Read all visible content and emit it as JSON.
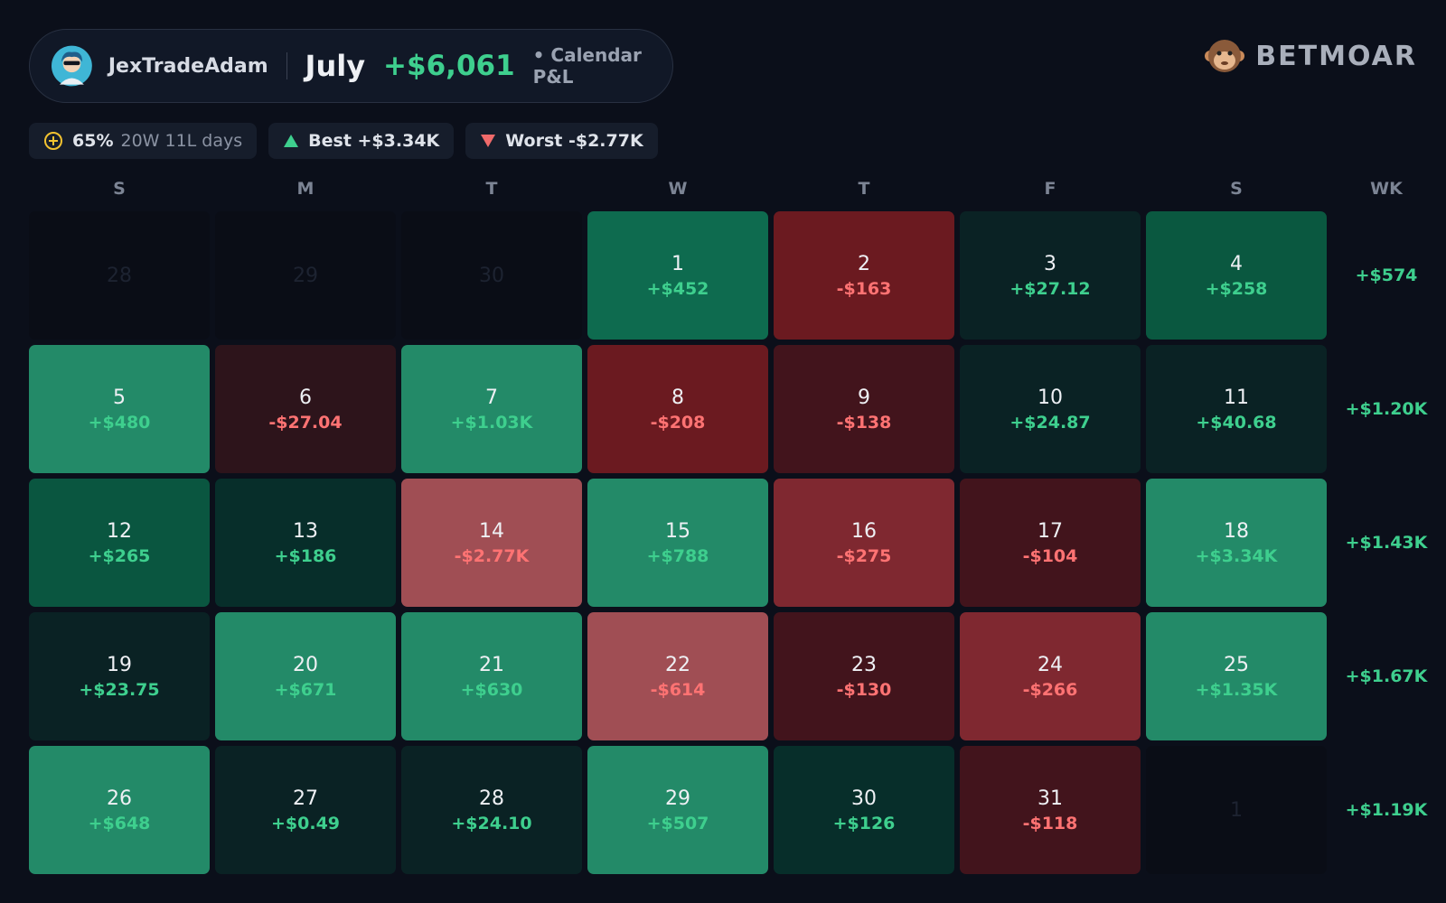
{
  "header": {
    "username": "JexTradeAdam",
    "month": "July",
    "total": "+$6,061",
    "subtitle": "• Calendar P&L",
    "brand": "BETMOAR"
  },
  "stats": {
    "win_rate": "65%",
    "record": "20W 11L days",
    "best": "Best +$3.34K",
    "worst": "Worst -$2.77K"
  },
  "columns": [
    "S",
    "M",
    "T",
    "W",
    "T",
    "F",
    "S",
    "WK"
  ],
  "weeks": [
    {
      "days": [
        {
          "day": "28",
          "outside": true
        },
        {
          "day": "29",
          "outside": true
        },
        {
          "day": "30",
          "outside": true
        },
        {
          "day": "1",
          "pnl": "+$452",
          "color": "#0e6b4f"
        },
        {
          "day": "2",
          "pnl": "-$163",
          "color": "#6b1a20"
        },
        {
          "day": "3",
          "pnl": "+$27.12",
          "color": "#0a2224"
        },
        {
          "day": "4",
          "pnl": "+$258",
          "color": "#0a5840"
        }
      ],
      "total": "+$574"
    },
    {
      "days": [
        {
          "day": "5",
          "pnl": "+$480",
          "color": "#238a68"
        },
        {
          "day": "6",
          "pnl": "-$27.04",
          "color": "#2d141b"
        },
        {
          "day": "7",
          "pnl": "+$1.03K",
          "color": "#238a68"
        },
        {
          "day": "8",
          "pnl": "-$208",
          "color": "#6b1a20"
        },
        {
          "day": "9",
          "pnl": "-$138",
          "color": "#42141c"
        },
        {
          "day": "10",
          "pnl": "+$24.87",
          "color": "#0a2224"
        },
        {
          "day": "11",
          "pnl": "+$40.68",
          "color": "#0a2224"
        }
      ],
      "total": "+$1.20K"
    },
    {
      "days": [
        {
          "day": "12",
          "pnl": "+$265",
          "color": "#0a5640"
        },
        {
          "day": "13",
          "pnl": "+$186",
          "color": "#072e2a"
        },
        {
          "day": "14",
          "pnl": "-$2.77K",
          "color": "#a04e54"
        },
        {
          "day": "15",
          "pnl": "+$788",
          "color": "#238a68"
        },
        {
          "day": "16",
          "pnl": "-$275",
          "color": "#7f2830"
        },
        {
          "day": "17",
          "pnl": "-$104",
          "color": "#42141c"
        },
        {
          "day": "18",
          "pnl": "+$3.34K",
          "color": "#238a68"
        }
      ],
      "total": "+$1.43K"
    },
    {
      "days": [
        {
          "day": "19",
          "pnl": "+$23.75",
          "color": "#0a2224"
        },
        {
          "day": "20",
          "pnl": "+$671",
          "color": "#238a68"
        },
        {
          "day": "21",
          "pnl": "+$630",
          "color": "#238a68"
        },
        {
          "day": "22",
          "pnl": "-$614",
          "color": "#a04e54"
        },
        {
          "day": "23",
          "pnl": "-$130",
          "color": "#42141c"
        },
        {
          "day": "24",
          "pnl": "-$266",
          "color": "#7f2830"
        },
        {
          "day": "25",
          "pnl": "+$1.35K",
          "color": "#238a68"
        }
      ],
      "total": "+$1.67K"
    },
    {
      "days": [
        {
          "day": "26",
          "pnl": "+$648",
          "color": "#238a68"
        },
        {
          "day": "27",
          "pnl": "+$0.49",
          "color": "#0a2224"
        },
        {
          "day": "28",
          "pnl": "+$24.10",
          "color": "#0a2224"
        },
        {
          "day": "29",
          "pnl": "+$507",
          "color": "#238a68"
        },
        {
          "day": "30",
          "pnl": "+$126",
          "color": "#072e2a"
        },
        {
          "day": "31",
          "pnl": "-$118",
          "color": "#42141c"
        },
        {
          "day": "1",
          "outside": true
        }
      ],
      "total": "+$1.19K"
    }
  ]
}
